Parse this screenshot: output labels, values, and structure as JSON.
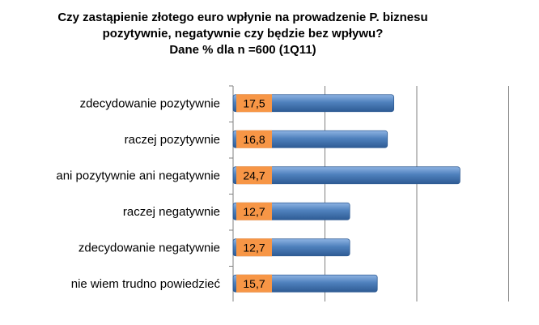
{
  "chart_data": {
    "type": "bar",
    "orientation": "horizontal",
    "title_lines": [
      "Czy zastąpienie złotego euro wpłynie  na prowadzenie P. biznesu",
      "pozytywnie, negatywnie czy będzie bez wpływu?",
      "Dane % dla n =600 (1Q11)"
    ],
    "categories": [
      "zdecydowanie pozytywnie",
      "raczej pozytywnie",
      "ani pozytywnie ani negatywnie",
      "raczej negatywnie",
      "zdecydowanie negatywnie",
      "nie wiem trudno powiedzieć"
    ],
    "values": [
      17.5,
      16.8,
      24.7,
      12.7,
      12.7,
      15.7
    ],
    "data_labels": [
      "17,5",
      "16,8",
      "24,7",
      "12,7",
      "12,7",
      "15,7"
    ],
    "xlim": [
      0,
      30
    ],
    "grid": true,
    "legend": "none",
    "colors": {
      "bar": "#4f81bd",
      "bar_light": "#8fb4e3",
      "bar_dark": "#2e5b94",
      "label_box": "#f79646",
      "gridline": "#808080"
    }
  }
}
